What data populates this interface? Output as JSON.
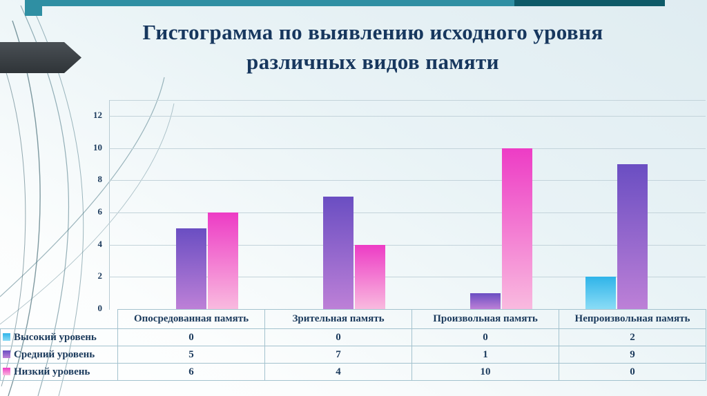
{
  "slide": {
    "title_line1": "Гистограмма по выявлению исходного уровня",
    "title_line2": "различных видов памяти"
  },
  "colors": {
    "accent_teal": "#2f8fa3",
    "accent_teal_dark": "#0e5a68",
    "arrow_gray": "#3a4044",
    "text_navy": "#1b3a5c",
    "gridline": "#c3d3da",
    "table_border": "#a3c2ce"
  },
  "chart_data": {
    "type": "bar",
    "title": "Гистограмма по выявлению исходного уровня различных видов памяти",
    "categories": [
      "Опосредованная память",
      "Зрительная память",
      "Произвольная память",
      "Непроизвольная память"
    ],
    "series": [
      {
        "name": "Высокий уровень",
        "values": [
          0,
          0,
          0,
          2
        ],
        "color_top": "#2fb4e9",
        "color_bottom": "#8adcf6"
      },
      {
        "name": "Средний уровень",
        "values": [
          5,
          7,
          1,
          9
        ],
        "color_top": "#6a4ec2",
        "color_bottom": "#bd80d7"
      },
      {
        "name": "Низкий уровень",
        "values": [
          6,
          4,
          10,
          0
        ],
        "color_top": "#ed3cc5",
        "color_bottom": "#f9badf"
      }
    ],
    "y_ticks": [
      0,
      2,
      4,
      6,
      8,
      10,
      12
    ],
    "ylim": [
      0,
      12
    ],
    "grid": true,
    "legend_position": "table-left",
    "data_table_shown": true
  }
}
